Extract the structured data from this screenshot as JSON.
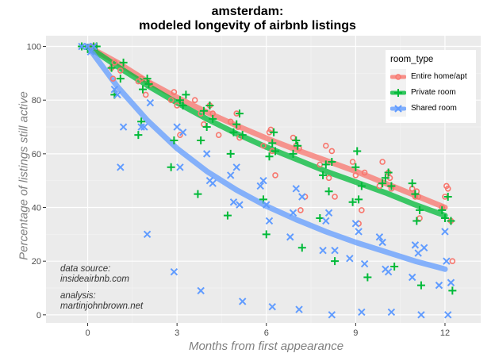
{
  "chart_data": {
    "type": "scatter",
    "title": "amsterdam:",
    "subtitle": "modeled longevity of airbnb listings",
    "xlabel": "Months from first appearance",
    "ylabel": "Percentage of listings still active",
    "xlim": [
      -1.4,
      13.2
    ],
    "ylim": [
      -3,
      104
    ],
    "x_ticks": [
      0,
      3,
      6,
      9,
      12
    ],
    "y_ticks": [
      0,
      20,
      40,
      60,
      80,
      100
    ],
    "grid": true,
    "legend": {
      "title": "room_type",
      "placement": "top-right",
      "entries": [
        "Entire home/apt",
        "Private room",
        "Shared room"
      ]
    },
    "annotations": [
      {
        "line1": "data source:",
        "line2": "insideairbnb.com"
      },
      {
        "line1": "analysis:",
        "line2": "martinjohnbrown.net"
      }
    ],
    "colors": {
      "entire": "#f8766d",
      "private": "#00ba38",
      "shared": "#619cff",
      "panel": "#ebebeb",
      "grid_major": "#ffffff",
      "grid_minor": "#f2f2f2",
      "tick_text": "#4d4d4d"
    },
    "series": [
      {
        "name": "Entire home/apt",
        "marker": "circle",
        "curve": [
          [
            0,
            100
          ],
          [
            1,
            94
          ],
          [
            2,
            87
          ],
          [
            3,
            81
          ],
          [
            4,
            75.5
          ],
          [
            5,
            70.5
          ],
          [
            6,
            65.8
          ],
          [
            7,
            61.5
          ],
          [
            8,
            57.5
          ],
          [
            9,
            53.5
          ],
          [
            10,
            49
          ],
          [
            11,
            44.5
          ],
          [
            12,
            40
          ]
        ],
        "points": [
          [
            -0.1,
            100
          ],
          [
            0.1,
            100
          ],
          [
            0.15,
            100
          ],
          [
            0.2,
            100
          ],
          [
            0.25,
            100
          ],
          [
            0.8,
            92
          ],
          [
            0.85,
            88
          ],
          [
            0.9,
            94
          ],
          [
            1.1,
            91
          ],
          [
            1.7,
            87
          ],
          [
            1.8,
            88
          ],
          [
            1.95,
            82
          ],
          [
            2.1,
            86
          ],
          [
            2.8,
            80
          ],
          [
            2.9,
            83
          ],
          [
            3.0,
            78
          ],
          [
            3.1,
            67
          ],
          [
            3.6,
            80
          ],
          [
            3.8,
            75
          ],
          [
            3.9,
            71
          ],
          [
            4.1,
            78
          ],
          [
            4.2,
            75
          ],
          [
            4.4,
            67
          ],
          [
            4.8,
            72
          ],
          [
            5.0,
            75
          ],
          [
            5.05,
            70
          ],
          [
            5.1,
            66
          ],
          [
            5.9,
            63
          ],
          [
            6.1,
            68
          ],
          [
            6.15,
            69
          ],
          [
            6.2,
            61
          ],
          [
            6.3,
            52
          ],
          [
            6.9,
            66
          ],
          [
            7.0,
            63
          ],
          [
            7.1,
            62
          ],
          [
            7.15,
            39
          ],
          [
            7.3,
            44
          ],
          [
            7.8,
            56
          ],
          [
            8.0,
            63
          ],
          [
            8.1,
            51
          ],
          [
            8.2,
            61
          ],
          [
            8.3,
            44
          ],
          [
            8.9,
            57
          ],
          [
            9.0,
            52
          ],
          [
            9.1,
            34
          ],
          [
            9.2,
            39
          ],
          [
            9.3,
            53
          ],
          [
            9.8,
            48
          ],
          [
            9.9,
            57
          ],
          [
            10.1,
            53
          ],
          [
            10.15,
            51
          ],
          [
            10.2,
            47
          ],
          [
            10.9,
            47
          ],
          [
            11.0,
            44
          ],
          [
            11.05,
            46
          ],
          [
            11.1,
            44
          ],
          [
            11.15,
            36
          ],
          [
            11.9,
            40
          ],
          [
            12.0,
            44
          ],
          [
            12.05,
            48
          ],
          [
            12.1,
            47
          ],
          [
            12.2,
            35
          ],
          [
            12.25,
            20
          ]
        ]
      },
      {
        "name": "Private room",
        "marker": "plus",
        "curve": [
          [
            0,
            100
          ],
          [
            1,
            92.5
          ],
          [
            2,
            85.5
          ],
          [
            3,
            79
          ],
          [
            4,
            73
          ],
          [
            5,
            67.5
          ],
          [
            6,
            62.5
          ],
          [
            7,
            58
          ],
          [
            8,
            53.5
          ],
          [
            9,
            49.5
          ],
          [
            10,
            45.5
          ],
          [
            11,
            41
          ],
          [
            12,
            37
          ]
        ],
        "points": [
          [
            -0.2,
            100
          ],
          [
            0.0,
            99
          ],
          [
            0.2,
            100
          ],
          [
            0.3,
            100
          ],
          [
            0.8,
            92
          ],
          [
            0.9,
            82
          ],
          [
            1.1,
            88
          ],
          [
            1.2,
            94
          ],
          [
            1.7,
            67
          ],
          [
            1.8,
            72
          ],
          [
            1.85,
            84
          ],
          [
            2.0,
            88
          ],
          [
            2.05,
            86
          ],
          [
            2.8,
            55
          ],
          [
            2.9,
            65
          ],
          [
            3.1,
            80
          ],
          [
            3.2,
            78
          ],
          [
            3.3,
            82
          ],
          [
            3.7,
            45
          ],
          [
            3.8,
            65
          ],
          [
            3.9,
            76
          ],
          [
            4.0,
            70
          ],
          [
            4.1,
            78
          ],
          [
            4.2,
            73
          ],
          [
            4.7,
            37
          ],
          [
            4.8,
            60
          ],
          [
            4.9,
            68
          ],
          [
            5.0,
            71
          ],
          [
            5.1,
            75
          ],
          [
            5.2,
            67
          ],
          [
            5.9,
            43
          ],
          [
            6.0,
            30
          ],
          [
            6.1,
            59
          ],
          [
            6.2,
            64
          ],
          [
            6.25,
            68
          ],
          [
            6.3,
            61
          ],
          [
            6.9,
            60
          ],
          [
            7.0,
            65
          ],
          [
            7.05,
            63
          ],
          [
            7.2,
            25
          ],
          [
            7.8,
            36
          ],
          [
            7.9,
            52
          ],
          [
            8.0,
            56
          ],
          [
            8.1,
            46
          ],
          [
            8.2,
            57
          ],
          [
            8.3,
            20
          ],
          [
            8.9,
            42
          ],
          [
            9.0,
            55
          ],
          [
            9.05,
            61
          ],
          [
            9.1,
            43
          ],
          [
            9.2,
            48
          ],
          [
            9.4,
            14
          ],
          [
            9.9,
            49
          ],
          [
            10.0,
            51
          ],
          [
            10.1,
            53
          ],
          [
            10.2,
            48
          ],
          [
            10.3,
            18
          ],
          [
            10.9,
            49
          ],
          [
            11.0,
            45
          ],
          [
            11.05,
            35
          ],
          [
            11.15,
            39
          ],
          [
            11.2,
            11
          ],
          [
            11.9,
            39
          ],
          [
            12.0,
            36
          ],
          [
            12.1,
            44
          ],
          [
            12.2,
            35
          ],
          [
            12.25,
            9
          ]
        ]
      },
      {
        "name": "Shared room",
        "marker": "x",
        "curve": [
          [
            0,
            100
          ],
          [
            1,
            85
          ],
          [
            2,
            72.5
          ],
          [
            3,
            62
          ],
          [
            4,
            53.5
          ],
          [
            5,
            46.5
          ],
          [
            6,
            40.5
          ],
          [
            7,
            35.5
          ],
          [
            8,
            31
          ],
          [
            9,
            27
          ],
          [
            10,
            23.5
          ],
          [
            11,
            20
          ],
          [
            12,
            17
          ]
        ],
        "points": [
          [
            -0.2,
            100
          ],
          [
            0.0,
            100
          ],
          [
            0.1,
            98
          ],
          [
            0.2,
            100
          ],
          [
            0.9,
            84
          ],
          [
            1.0,
            82
          ],
          [
            1.1,
            55
          ],
          [
            1.2,
            70
          ],
          [
            1.8,
            70
          ],
          [
            1.9,
            70
          ],
          [
            2.0,
            30
          ],
          [
            2.1,
            79
          ],
          [
            2.9,
            16
          ],
          [
            3.0,
            70
          ],
          [
            3.1,
            55
          ],
          [
            3.2,
            68
          ],
          [
            3.8,
            9
          ],
          [
            4.0,
            60
          ],
          [
            4.1,
            50
          ],
          [
            4.2,
            49
          ],
          [
            4.8,
            52
          ],
          [
            4.9,
            42
          ],
          [
            5.0,
            55
          ],
          [
            5.1,
            41
          ],
          [
            5.2,
            5
          ],
          [
            5.8,
            48
          ],
          [
            5.9,
            50
          ],
          [
            6.0,
            41
          ],
          [
            6.1,
            35
          ],
          [
            6.2,
            3
          ],
          [
            6.8,
            29
          ],
          [
            6.9,
            38
          ],
          [
            7.0,
            47
          ],
          [
            7.1,
            2
          ],
          [
            7.2,
            44
          ],
          [
            7.9,
            24
          ],
          [
            8.0,
            35
          ],
          [
            8.1,
            38
          ],
          [
            8.2,
            0
          ],
          [
            8.3,
            24
          ],
          [
            8.8,
            21
          ],
          [
            9.0,
            34
          ],
          [
            9.1,
            31
          ],
          [
            9.2,
            1
          ],
          [
            9.3,
            19
          ],
          [
            9.8,
            29
          ],
          [
            9.9,
            27
          ],
          [
            10.0,
            17
          ],
          [
            10.1,
            16
          ],
          [
            10.2,
            1
          ],
          [
            10.9,
            14
          ],
          [
            11.0,
            26
          ],
          [
            11.1,
            23
          ],
          [
            11.2,
            0
          ],
          [
            11.3,
            25
          ],
          [
            11.8,
            11
          ],
          [
            12.0,
            31
          ],
          [
            12.05,
            20
          ],
          [
            12.1,
            0
          ],
          [
            12.2,
            12
          ]
        ]
      }
    ]
  }
}
